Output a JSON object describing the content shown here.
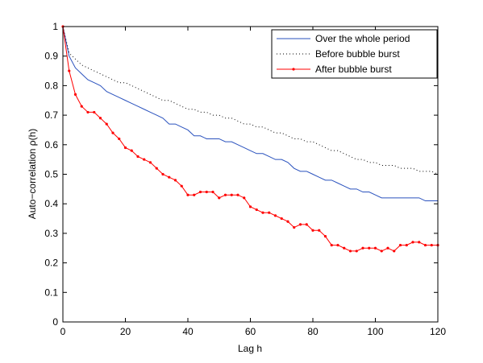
{
  "chart_data": {
    "type": "line",
    "xlabel": "Lag h",
    "ylabel": "Auto−correlation ρ(h)",
    "x": [
      0,
      2,
      4,
      6,
      8,
      10,
      12,
      14,
      16,
      18,
      20,
      22,
      24,
      26,
      28,
      30,
      32,
      34,
      36,
      38,
      40,
      42,
      44,
      46,
      48,
      50,
      52,
      54,
      56,
      58,
      60,
      62,
      64,
      66,
      68,
      70,
      72,
      74,
      76,
      78,
      80,
      82,
      84,
      86,
      88,
      90,
      92,
      94,
      96,
      98,
      100,
      102,
      104,
      106,
      108,
      110,
      112,
      114,
      116,
      118,
      120
    ],
    "series": [
      {
        "name": "Over the whole period",
        "color": "#2a52be",
        "linestyle": "solid",
        "marker": null,
        "values": [
          1,
          0.9,
          0.86,
          0.84,
          0.82,
          0.81,
          0.8,
          0.78,
          0.77,
          0.76,
          0.75,
          0.74,
          0.73,
          0.72,
          0.71,
          0.7,
          0.69,
          0.67,
          0.67,
          0.66,
          0.65,
          0.63,
          0.63,
          0.62,
          0.62,
          0.62,
          0.61,
          0.61,
          0.6,
          0.59,
          0.58,
          0.57,
          0.57,
          0.56,
          0.55,
          0.55,
          0.54,
          0.52,
          0.51,
          0.51,
          0.5,
          0.49,
          0.48,
          0.48,
          0.47,
          0.46,
          0.45,
          0.45,
          0.44,
          0.44,
          0.43,
          0.42,
          0.42,
          0.42,
          0.42,
          0.42,
          0.42,
          0.42,
          0.41,
          0.41,
          0.41
        ]
      },
      {
        "name": "Before bubble burst",
        "color": "#000000",
        "linestyle": "dotted",
        "marker": null,
        "values": [
          1,
          0.91,
          0.89,
          0.87,
          0.86,
          0.85,
          0.84,
          0.83,
          0.82,
          0.81,
          0.81,
          0.8,
          0.79,
          0.78,
          0.77,
          0.76,
          0.75,
          0.75,
          0.74,
          0.73,
          0.72,
          0.72,
          0.71,
          0.71,
          0.7,
          0.7,
          0.69,
          0.69,
          0.68,
          0.67,
          0.67,
          0.66,
          0.66,
          0.65,
          0.64,
          0.64,
          0.63,
          0.62,
          0.62,
          0.61,
          0.61,
          0.6,
          0.59,
          0.58,
          0.58,
          0.57,
          0.56,
          0.55,
          0.55,
          0.54,
          0.54,
          0.53,
          0.53,
          0.53,
          0.52,
          0.52,
          0.52,
          0.51,
          0.51,
          0.51,
          0.5
        ]
      },
      {
        "name": "After bubble burst",
        "color": "#ff0000",
        "linestyle": "solid",
        "marker": "dot",
        "values": [
          1,
          0.85,
          0.77,
          0.73,
          0.71,
          0.71,
          0.69,
          0.67,
          0.64,
          0.62,
          0.59,
          0.58,
          0.56,
          0.55,
          0.54,
          0.52,
          0.5,
          0.49,
          0.48,
          0.46,
          0.43,
          0.43,
          0.44,
          0.44,
          0.44,
          0.42,
          0.43,
          0.43,
          0.43,
          0.42,
          0.39,
          0.38,
          0.37,
          0.37,
          0.36,
          0.35,
          0.34,
          0.32,
          0.33,
          0.33,
          0.31,
          0.31,
          0.29,
          0.26,
          0.26,
          0.25,
          0.24,
          0.24,
          0.25,
          0.25,
          0.25,
          0.24,
          0.25,
          0.24,
          0.26,
          0.26,
          0.27,
          0.27,
          0.26,
          0.26,
          0.26
        ]
      }
    ],
    "xlim": [
      0,
      120
    ],
    "xticks": [
      0,
      20,
      40,
      60,
      80,
      100,
      120
    ],
    "ylim": [
      0,
      1
    ],
    "yticks": [
      0,
      0.1,
      0.2,
      0.3,
      0.4,
      0.5,
      0.6,
      0.7,
      0.8,
      0.9,
      1
    ],
    "grid": false,
    "legend": "upper right"
  }
}
